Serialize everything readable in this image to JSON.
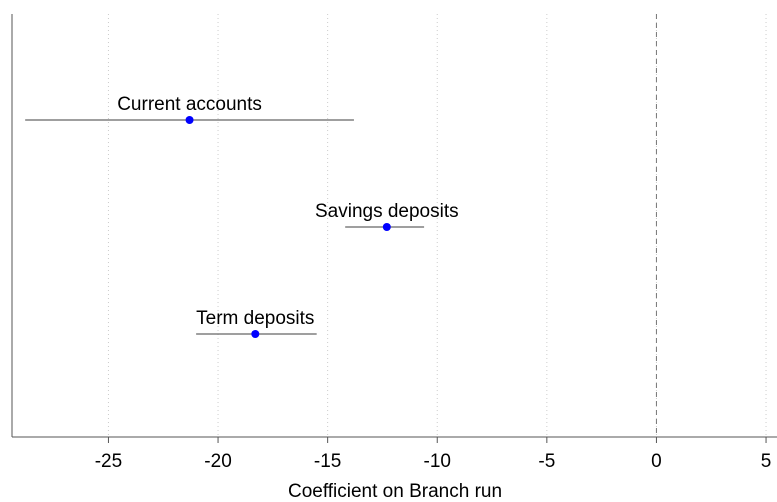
{
  "chart_data": {
    "type": "coefplot",
    "xlabel": "Coefficient on Branch run",
    "categories": [
      "Current accounts",
      "Savings deposits",
      "Term deposits"
    ],
    "values": [
      -21.3,
      -12.3,
      -18.3
    ],
    "lower": [
      -28.8,
      -14.2,
      -21.0
    ],
    "upper": [
      -13.8,
      -10.6,
      -15.5
    ],
    "color": "#0000ff",
    "ci_color": "#666666",
    "xlim": [
      -29.4,
      5.5
    ],
    "xticks": [
      -25,
      -20,
      -15,
      -10,
      -5,
      0,
      5
    ],
    "reference_line": 0,
    "grid": true
  }
}
